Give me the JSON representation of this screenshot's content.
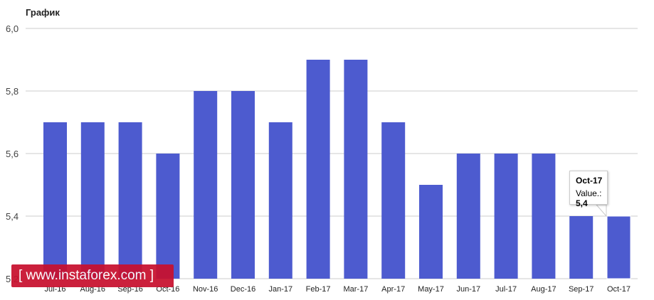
{
  "chart_data": {
    "type": "bar",
    "title": "График",
    "categories": [
      "Jul-16",
      "Aug-16",
      "Sep-16",
      "Oct-16",
      "Nov-16",
      "Dec-16",
      "Jan-17",
      "Feb-17",
      "Mar-17",
      "Apr-17",
      "May-17",
      "Jun-17",
      "Jul-17",
      "Aug-17",
      "Sep-17",
      "Oct-17"
    ],
    "values": [
      5.7,
      5.7,
      5.7,
      5.6,
      5.8,
      5.8,
      5.7,
      5.9,
      5.9,
      5.7,
      5.5,
      5.6,
      5.6,
      5.6,
      5.4,
      5.4
    ],
    "yticks": [
      "5,2",
      "5,4",
      "5,6",
      "5,8",
      "6,0"
    ],
    "ylim": [
      5.2,
      6.0
    ],
    "grid": true,
    "bar_color": "#4d5bcf"
  },
  "tooltip": {
    "title": "Oct-17",
    "label": "Value.:",
    "value": "5,4"
  },
  "watermark": {
    "text": "[ www.instaforex.com ]"
  }
}
